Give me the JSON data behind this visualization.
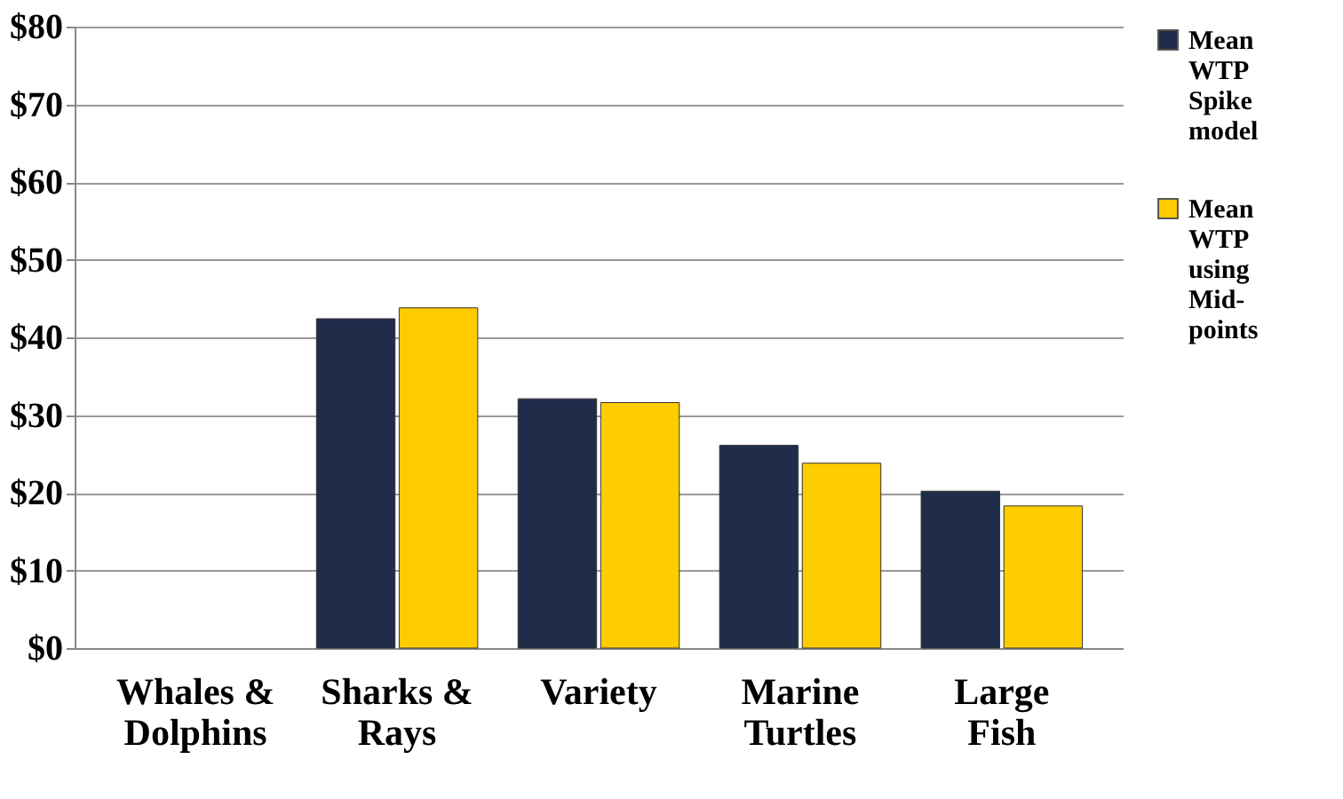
{
  "chart_data": {
    "type": "bar",
    "categories": [
      "Whales & Dolphins",
      "Sharks & Rays",
      "Variety",
      "Marine Turtles",
      "Large Fish"
    ],
    "series": [
      {
        "name": "Mean WTP Spike model",
        "color": "#1f2d4a",
        "values": [
          null,
          42.4,
          32.1,
          26.1,
          20.2
        ]
      },
      {
        "name": "Mean WTP using Mid-points",
        "color": "#ffcc00",
        "values": [
          null,
          43.8,
          31.6,
          23.8,
          18.3
        ]
      }
    ],
    "ylim": [
      0,
      80
    ],
    "yticks": [
      {
        "value": 0,
        "label": "$0"
      },
      {
        "value": 10,
        "label": "$10"
      },
      {
        "value": 20,
        "label": "$20"
      },
      {
        "value": 30,
        "label": "$30"
      },
      {
        "value": 40,
        "label": "$40"
      },
      {
        "value": 50,
        "label": "$50"
      },
      {
        "value": 60,
        "label": "$60"
      },
      {
        "value": 70,
        "label": "$70"
      },
      {
        "value": 80,
        "label": "$80"
      }
    ],
    "grid": "y",
    "legend": "right"
  }
}
